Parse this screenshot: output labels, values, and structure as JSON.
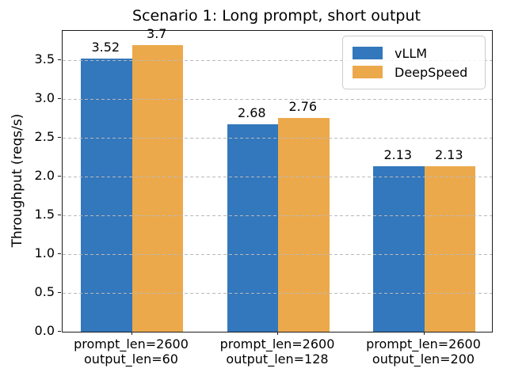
{
  "chart_data": {
    "type": "bar",
    "title": "Scenario 1: Long prompt, short output",
    "ylabel": "Throughput (reqs/s)",
    "categories": [
      [
        "prompt_len=2600",
        "output_len=60"
      ],
      [
        "prompt_len=2600",
        "output_len=128"
      ],
      [
        "prompt_len=2600",
        "output_len=200"
      ]
    ],
    "series": [
      {
        "name": "vLLM",
        "color": "#3377bc",
        "values": [
          3.52,
          2.68,
          2.13
        ]
      },
      {
        "name": "DeepSpeed",
        "color": "#eca94b",
        "values": [
          3.7,
          2.76,
          2.13
        ]
      }
    ],
    "ylim": [
      0,
      3.88
    ],
    "ytick_step": 0.5,
    "yticks": [
      "0.0",
      "0.5",
      "1.0",
      "1.5",
      "2.0",
      "2.5",
      "3.0",
      "3.5"
    ],
    "grid": {
      "axis": "y",
      "style": "dashed",
      "color": "#b9b9b9",
      "drawn_over_bars": true
    },
    "legend": {
      "position": "upper right"
    },
    "bar_value_labels_shown": true
  }
}
